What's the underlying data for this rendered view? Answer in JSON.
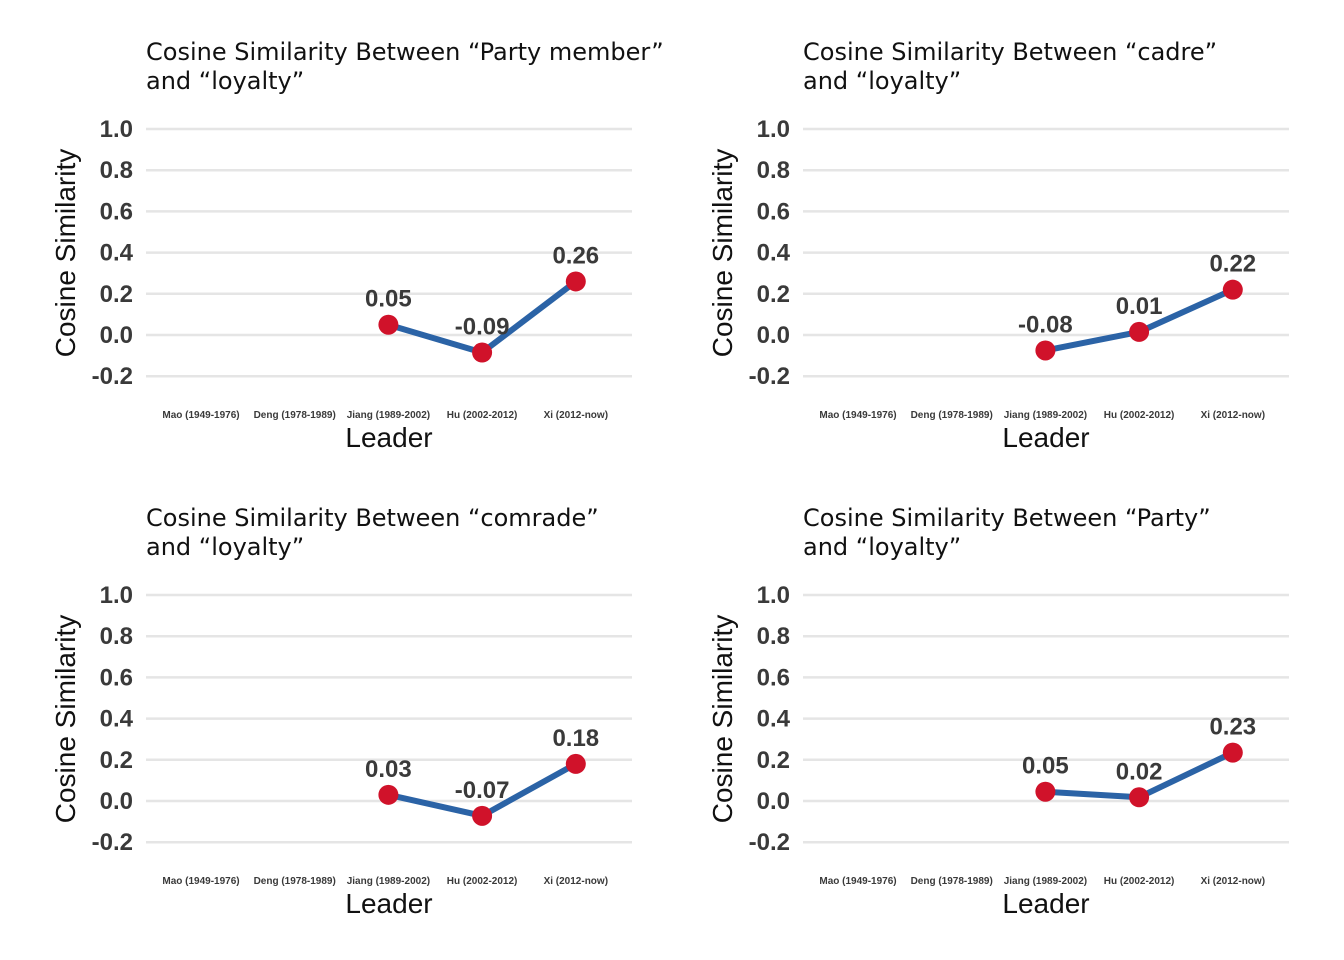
{
  "colors": {
    "line": "#2b63a6",
    "point": "#d0122a"
  },
  "chart_data": [
    {
      "type": "line",
      "title": [
        "Cosine Similarity Between “Party member”",
        "and “loyalty”"
      ],
      "xlabel": "Leader",
      "ylabel": "Cosine Similarity",
      "categories": [
        "Mao (1949-1976)",
        "Deng (1978-1989)",
        "Jiang (1989-2002)",
        "Hu (2002-2012)",
        "Xi (2012-now)"
      ],
      "values": [
        null,
        null,
        0.05,
        -0.085,
        0.26
      ],
      "labels": [
        "",
        "",
        "0.05",
        "-0.09",
        "0.26"
      ],
      "yticks": [
        "1.0",
        "0.8",
        "0.6",
        "0.4",
        "0.2",
        "0.0",
        "-0.2"
      ],
      "ylim": [
        -0.2,
        1.0
      ],
      "grid": true
    },
    {
      "type": "line",
      "title": [
        "Cosine Similarity Between “cadre”",
        "and “loyalty”"
      ],
      "xlabel": "Leader",
      "ylabel": "Cosine Similarity",
      "categories": [
        "Mao (1949-1976)",
        "Deng (1978-1989)",
        "Jiang (1989-2002)",
        "Hu (2002-2012)",
        "Xi (2012-now)"
      ],
      "values": [
        null,
        null,
        -0.075,
        0.015,
        0.22
      ],
      "labels": [
        "",
        "",
        "-0.08",
        "0.01",
        "0.22"
      ],
      "yticks": [
        "1.0",
        "0.8",
        "0.6",
        "0.4",
        "0.2",
        "0.0",
        "-0.2"
      ],
      "ylim": [
        -0.2,
        1.0
      ],
      "grid": true
    },
    {
      "type": "line",
      "title": [
        "Cosine Similarity Between “comrade”",
        "and “loyalty”"
      ],
      "xlabel": "Leader",
      "ylabel": "Cosine Similarity",
      "categories": [
        "Mao (1949-1976)",
        "Deng (1978-1989)",
        "Jiang (1989-2002)",
        "Hu (2002-2012)",
        "Xi (2012-now)"
      ],
      "values": [
        null,
        null,
        0.03,
        -0.072,
        0.18
      ],
      "labels": [
        "",
        "",
        "0.03",
        "-0.07",
        "0.18"
      ],
      "yticks": [
        "1.0",
        "0.8",
        "0.6",
        "0.4",
        "0.2",
        "0.0",
        "-0.2"
      ],
      "ylim": [
        -0.2,
        1.0
      ],
      "grid": true
    },
    {
      "type": "line",
      "title": [
        "Cosine Similarity Between “Party”",
        "and “loyalty”"
      ],
      "xlabel": "Leader",
      "ylabel": "Cosine Similarity",
      "categories": [
        "Mao (1949-1976)",
        "Deng (1978-1989)",
        "Jiang (1989-2002)",
        "Hu (2002-2012)",
        "Xi (2012-now)"
      ],
      "values": [
        null,
        null,
        0.045,
        0.018,
        0.235
      ],
      "labels": [
        "",
        "",
        "0.05",
        "0.02",
        "0.23"
      ],
      "yticks": [
        "1.0",
        "0.8",
        "0.6",
        "0.4",
        "0.2",
        "0.0",
        "-0.2"
      ],
      "ylim": [
        -0.2,
        1.0
      ],
      "grid": true
    }
  ]
}
